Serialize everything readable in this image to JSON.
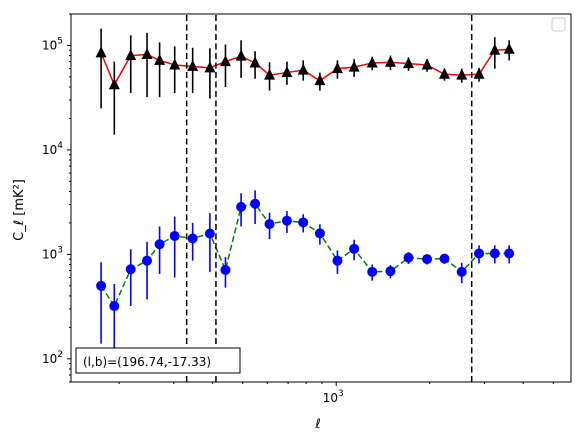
{
  "chart_data": {
    "type": "scatter",
    "title": "",
    "xlabel": "ℓ",
    "ylabel": "C_ℓ [mK²]",
    "xscale": "log",
    "yscale": "log",
    "xlim": [
      140,
      5700
    ],
    "ylim": [
      60,
      200000
    ],
    "x_ticks": [
      {
        "value": 1000,
        "base": "10",
        "exp": "3"
      }
    ],
    "y_ticks": [
      {
        "value": 100,
        "base": "10",
        "exp": "2"
      },
      {
        "value": 1000,
        "base": "10",
        "exp": "3"
      },
      {
        "value": 10000,
        "base": "10",
        "exp": "4"
      },
      {
        "value": 100000,
        "base": "10",
        "exp": "5"
      }
    ],
    "grid": false,
    "legend": {
      "position": "top-right",
      "entries": []
    },
    "annotation": "(l,b)=(196.74,-17.33)",
    "vlines": [
      330,
      410,
      2730
    ],
    "series": [
      {
        "marker": "triangle",
        "color": "#000000",
        "line_color": "#ff0000",
        "line_style": "solid",
        "x": [
          175,
          193,
          218,
          246,
          270,
          302,
          345,
          392,
          440,
          494,
          548,
          610,
          694,
          783,
          886,
          1009,
          1142,
          1306,
          1495,
          1709,
          1961,
          2231,
          2536,
          2883,
          3240,
          3604
        ],
        "y": [
          85000,
          42000,
          80000,
          82000,
          72000,
          65000,
          63000,
          61000,
          70000,
          79000,
          68000,
          52000,
          55000,
          58000,
          46000,
          60000,
          62000,
          68000,
          69000,
          67000,
          65000,
          53000,
          52000,
          53000,
          90000,
          92000
        ],
        "err_low": [
          60000,
          28000,
          45000,
          50000,
          40000,
          30000,
          28000,
          30000,
          30000,
          30000,
          20000,
          15000,
          13000,
          12000,
          9000,
          12000,
          12000,
          10000,
          11000,
          10000,
          9000,
          7000,
          8000,
          8000,
          30000,
          20000
        ],
        "err_high": [
          60000,
          28000,
          45000,
          50000,
          35000,
          33000,
          32000,
          33000,
          32000,
          33000,
          20000,
          17000,
          15000,
          14000,
          9000,
          12000,
          12000,
          10000,
          11000,
          10000,
          9000,
          7000,
          8000,
          8000,
          30000,
          20000
        ]
      },
      {
        "marker": "circle",
        "color": "#0000ff",
        "line_color": "#008000",
        "line_style": "dashed",
        "x": [
          175,
          193,
          218,
          246,
          270,
          302,
          345,
          392,
          440,
          494,
          548,
          610,
          694,
          783,
          886,
          1009,
          1142,
          1306,
          1495,
          1709,
          1961,
          2231,
          2536,
          2883,
          3240,
          3604
        ],
        "y": [
          500,
          320,
          720,
          870,
          1250,
          1500,
          1420,
          1580,
          710,
          2850,
          3050,
          1950,
          2100,
          2020,
          1590,
          870,
          1130,
          680,
          690,
          930,
          900,
          910,
          680,
          1020,
          1020,
          1020
        ],
        "err_low": [
          360,
          220,
          400,
          500,
          600,
          900,
          550,
          900,
          230,
          1000,
          1100,
          550,
          500,
          400,
          350,
          220,
          250,
          120,
          100,
          120,
          100,
          100,
          150,
          200,
          200,
          200
        ],
        "err_high": [
          340,
          200,
          400,
          450,
          600,
          800,
          580,
          900,
          230,
          1000,
          1050,
          550,
          500,
          400,
          350,
          220,
          250,
          120,
          100,
          120,
          100,
          100,
          150,
          200,
          200,
          200
        ]
      }
    ]
  }
}
